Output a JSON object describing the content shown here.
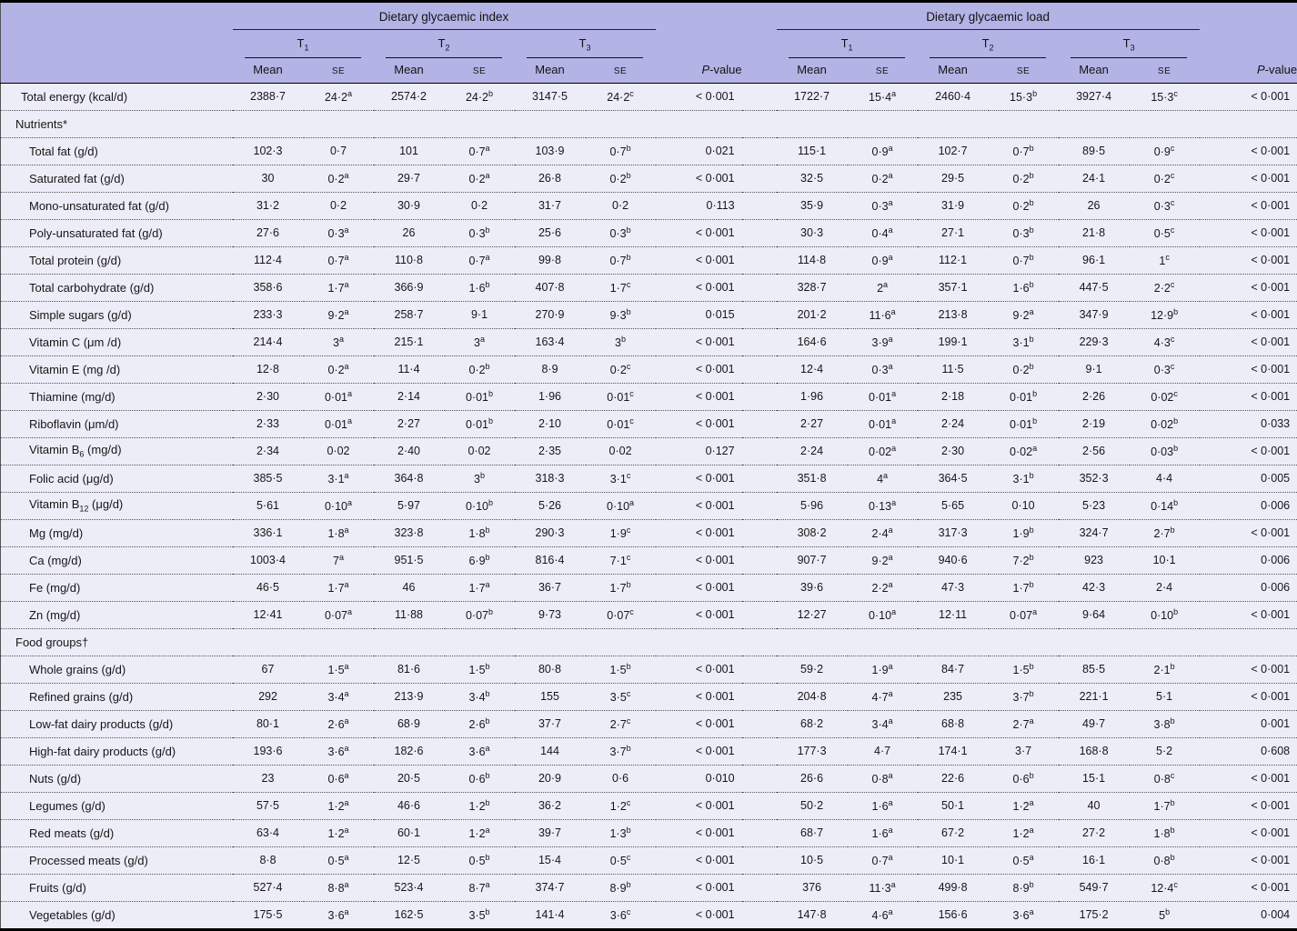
{
  "table": {
    "colors": {
      "header_bg": "#b3b3e6",
      "row_bg": "#ededf8",
      "frame_border": "#000000",
      "dotted_rule": "#555555",
      "text": "#161616"
    },
    "header": {
      "group1": "Dietary glycaemic index",
      "group2": "Dietary glycaemic load",
      "tertiles": [
        "T~1~",
        "T~2~",
        "T~3~"
      ],
      "mean_label": "Mean",
      "se_label": "SE",
      "p_label": "*P*-value"
    },
    "rows": [
      {
        "type": "data",
        "indent": false,
        "label": "Total energy (kcal/d)",
        "gi": [
          "2388·7",
          "24·2^a^",
          "2574·2",
          "24·2^b^",
          "3147·5",
          "24·2^c^",
          "< 0·001"
        ],
        "gl": [
          "1722·7",
          "15·4^a^",
          "2460·4",
          "15·3^b^",
          "3927·4",
          "15·3^c^",
          "< 0·001"
        ]
      },
      {
        "type": "section",
        "label": "Nutrients*"
      },
      {
        "type": "data",
        "indent": true,
        "label": "Total fat (g/d)",
        "gi": [
          "102·3",
          "0·7",
          "101",
          "0·7^a^",
          "103·9",
          "0·7^b^",
          "0·021"
        ],
        "gl": [
          "115·1",
          "0·9^a^",
          "102·7",
          "0·7^b^",
          "89·5",
          "0·9^c^",
          "< 0·001"
        ]
      },
      {
        "type": "data",
        "indent": true,
        "label": "Saturated fat (g/d)",
        "gi": [
          "30",
          "0·2^a^",
          "29·7",
          "0·2^a^",
          "26·8",
          "0·2^b^",
          "< 0·001"
        ],
        "gl": [
          "32·5",
          "0·2^a^",
          "29·5",
          "0·2^b^",
          "24·1",
          "0·2^c^",
          "< 0·001"
        ]
      },
      {
        "type": "data",
        "indent": true,
        "label": "Mono-unsaturated fat (g/d)",
        "gi": [
          "31·2",
          "0·2",
          "30·9",
          "0·2",
          "31·7",
          "0·2",
          "0·113"
        ],
        "gl": [
          "35·9",
          "0·3^a^",
          "31·9",
          "0·2^b^",
          "26",
          "0·3^c^",
          "< 0·001"
        ]
      },
      {
        "type": "data",
        "indent": true,
        "label": "Poly-unsaturated fat (g/d)",
        "gi": [
          "27·6",
          "0·3^a^",
          "26",
          "0·3^b^",
          "25·6",
          "0·3^b^",
          "< 0·001"
        ],
        "gl": [
          "30·3",
          "0·4^a^",
          "27·1",
          "0·3^b^",
          "21·8",
          "0·5^c^",
          "< 0·001"
        ]
      },
      {
        "type": "data",
        "indent": true,
        "label": "Total protein (g/d)",
        "gi": [
          "112·4",
          "0·7^a^",
          "110·8",
          "0·7^a^",
          "99·8",
          "0·7^b^",
          "< 0·001"
        ],
        "gl": [
          "114·8",
          "0·9^a^",
          "112·1",
          "0·7^b^",
          "96·1",
          "1^c^",
          "< 0·001"
        ]
      },
      {
        "type": "data",
        "indent": true,
        "label": "Total carbohydrate (g/d)",
        "gi": [
          "358·6",
          "1·7^a^",
          "366·9",
          "1·6^b^",
          "407·8",
          "1·7^c^",
          "< 0·001"
        ],
        "gl": [
          "328·7",
          "2^a^",
          "357·1",
          "1·6^b^",
          "447·5",
          "2·2^c^",
          "< 0·001"
        ]
      },
      {
        "type": "data",
        "indent": true,
        "label": "Simple sugars (g/d)",
        "gi": [
          "233·3",
          "9·2^a^",
          "258·7",
          "9·1",
          "270·9",
          "9·3^b^",
          "0·015"
        ],
        "gl": [
          "201·2",
          "11·6^a^",
          "213·8",
          "9·2^a^",
          "347·9",
          "12·9^b^",
          "< 0·001"
        ]
      },
      {
        "type": "data",
        "indent": true,
        "label": "Vitamin C (μm /d)",
        "gi": [
          "214·4",
          "3^a^",
          "215·1",
          "3^a^",
          "163·4",
          "3^b^",
          "< 0·001"
        ],
        "gl": [
          "164·6",
          "3·9^a^",
          "199·1",
          "3·1^b^",
          "229·3",
          "4·3^c^",
          "< 0·001"
        ]
      },
      {
        "type": "data",
        "indent": true,
        "label": "Vitamin E (mg /d)",
        "gi": [
          "12·8",
          "0·2^a^",
          "11·4",
          "0·2^b^",
          "8·9",
          "0·2^c^",
          "< 0·001"
        ],
        "gl": [
          "12·4",
          "0·3^a^",
          "11·5",
          "0·2^b^",
          "9·1",
          "0·3^c^",
          "< 0·001"
        ]
      },
      {
        "type": "data",
        "indent": true,
        "label": "Thiamine (mg/d)",
        "gi": [
          "2·30",
          "0·01^a^",
          "2·14",
          "0·01^b^",
          "1·96",
          "0·01^c^",
          "< 0·001"
        ],
        "gl": [
          "1·96",
          "0·01^a^",
          "2·18",
          "0·01^b^",
          "2·26",
          "0·02^c^",
          "< 0·001"
        ]
      },
      {
        "type": "data",
        "indent": true,
        "label": "Riboflavin (μm/d)",
        "gi": [
          "2·33",
          "0·01^a^",
          "2·27",
          "0·01^b^",
          "2·10",
          "0·01^c^",
          "< 0·001"
        ],
        "gl": [
          "2·27",
          "0·01^a^",
          "2·24",
          "0·01^b^",
          "2·19",
          "0·02^b^",
          "0·033"
        ]
      },
      {
        "type": "data",
        "indent": true,
        "label": "Vitamin B~6~ (mg/d)",
        "gi": [
          "2·34",
          "0·02",
          "2·40",
          "0·02",
          "2·35",
          "0·02",
          "0·127"
        ],
        "gl": [
          "2·24",
          "0·02^a^",
          "2·30",
          "0·02^a^",
          "2·56",
          "0·03^b^",
          "< 0·001"
        ]
      },
      {
        "type": "data",
        "indent": true,
        "label": "Folic acid (μg/d)",
        "gi": [
          "385·5",
          "3·1^a^",
          "364·8",
          "3^b^",
          "318·3",
          "3·1^c^",
          "< 0·001"
        ],
        "gl": [
          "351·8",
          "4^a^",
          "364·5",
          "3·1^b^",
          "352·3",
          "4·4",
          "0·005"
        ]
      },
      {
        "type": "data",
        "indent": true,
        "label": "Vitamin B~12~ (μg/d)",
        "gi": [
          "5·61",
          "0·10^a^",
          "5·97",
          "0·10^b^",
          "5·26",
          "0·10^a^",
          "< 0·001"
        ],
        "gl": [
          "5·96",
          "0·13^a^",
          "5·65",
          "0·10",
          "5·23",
          "0·14^b^",
          "0·006"
        ]
      },
      {
        "type": "data",
        "indent": true,
        "label": "Mg (mg/d)",
        "gi": [
          "336·1",
          "1·8^a^",
          "323·8",
          "1·8^b^",
          "290·3",
          "1·9^c^",
          "< 0·001"
        ],
        "gl": [
          "308·2",
          "2·4^a^",
          "317·3",
          "1·9^b^",
          "324·7",
          "2·7^b^",
          "< 0·001"
        ]
      },
      {
        "type": "data",
        "indent": true,
        "label": "Ca (mg/d)",
        "gi": [
          "1003·4",
          "7^a^",
          "951·5",
          "6·9^b^",
          "816·4",
          "7·1^c^",
          "< 0·001"
        ],
        "gl": [
          "907·7",
          "9·2^a^",
          "940·6",
          "7·2^b^",
          "923",
          "10·1",
          "0·006"
        ]
      },
      {
        "type": "data",
        "indent": true,
        "label": "Fe (mg/d)",
        "gi": [
          "46·5",
          "1·7^a^",
          "46",
          "1·7^a^",
          "36·7",
          "1·7^b^",
          "< 0·001"
        ],
        "gl": [
          "39·6",
          "2·2^a^",
          "47·3",
          "1·7^b^",
          "42·3",
          "2·4",
          "0·006"
        ]
      },
      {
        "type": "data",
        "indent": true,
        "label": "Zn (mg/d)",
        "gi": [
          "12·41",
          "0·07^a^",
          "11·88",
          "0·07^b^",
          "9·73",
          "0·07^c^",
          "< 0·001"
        ],
        "gl": [
          "12·27",
          "0·10^a^",
          "12·11",
          "0·07^a^",
          "9·64",
          "0·10^b^",
          "< 0·001"
        ]
      },
      {
        "type": "section",
        "label": "Food groups†"
      },
      {
        "type": "data",
        "indent": true,
        "label": "Whole grains (g/d)",
        "gi": [
          "67",
          "1·5^a^",
          "81·6",
          "1·5^b^",
          "80·8",
          "1·5^b^",
          "< 0·001"
        ],
        "gl": [
          "59·2",
          "1·9^a^",
          "84·7",
          "1·5^b^",
          "85·5",
          "2·1^b^",
          "< 0·001"
        ]
      },
      {
        "type": "data",
        "indent": true,
        "label": "Refined grains (g/d)",
        "gi": [
          "292",
          "3·4^a^",
          "213·9",
          "3·4^b^",
          "155",
          "3·5^c^",
          "< 0·001"
        ],
        "gl": [
          "204·8",
          "4·7^a^",
          "235",
          "3·7^b^",
          "221·1",
          "5·1",
          "< 0·001"
        ]
      },
      {
        "type": "data",
        "indent": true,
        "label": "Low-fat dairy products (g/d)",
        "gi": [
          "80·1",
          "2·6^a^",
          "68·9",
          "2·6^b^",
          "37·7",
          "2·7^c^",
          "< 0·001"
        ],
        "gl": [
          "68·2",
          "3·4^a^",
          "68·8",
          "2·7^a^",
          "49·7",
          "3·8^b^",
          "0·001"
        ]
      },
      {
        "type": "data",
        "indent": true,
        "label": "High-fat dairy products (g/d)",
        "gi": [
          "193·6",
          "3·6^a^",
          "182·6",
          "3·6^a^",
          "144",
          "3·7^b^",
          "< 0·001"
        ],
        "gl": [
          "177·3",
          "4·7",
          "174·1",
          "3·7",
          "168·8",
          "5·2",
          "0·608"
        ]
      },
      {
        "type": "data",
        "indent": true,
        "label": "Nuts (g/d)",
        "gi": [
          "23",
          "0·6^a^",
          "20·5",
          "0·6^b^",
          "20·9",
          "0·6",
          "0·010"
        ],
        "gl": [
          "26·6",
          "0·8^a^",
          "22·6",
          "0·6^b^",
          "15·1",
          "0·8^c^",
          "< 0·001"
        ]
      },
      {
        "type": "data",
        "indent": true,
        "label": "Legumes (g/d)",
        "gi": [
          "57·5",
          "1·2^a^",
          "46·6",
          "1·2^b^",
          "36·2",
          "1·2^c^",
          "< 0·001"
        ],
        "gl": [
          "50·2",
          "1·6^a^",
          "50·1",
          "1·2^a^",
          "40",
          "1·7^b^",
          "< 0·001"
        ]
      },
      {
        "type": "data",
        "indent": true,
        "label": "Red meats (g/d)",
        "gi": [
          "63·4",
          "1·2^a^",
          "60·1",
          "1·2^a^",
          "39·7",
          "1·3^b^",
          "< 0·001"
        ],
        "gl": [
          "68·7",
          "1·6^a^",
          "67·2",
          "1·2^a^",
          "27·2",
          "1·8^b^",
          "< 0·001"
        ]
      },
      {
        "type": "data",
        "indent": true,
        "label": "Processed meats (g/d)",
        "gi": [
          "8·8",
          "0·5^a^",
          "12·5",
          "0·5^b^",
          "15·4",
          "0·5^c^",
          "< 0·001"
        ],
        "gl": [
          "10·5",
          "0·7^a^",
          "10·1",
          "0·5^a^",
          "16·1",
          "0·8^b^",
          "< 0·001"
        ]
      },
      {
        "type": "data",
        "indent": true,
        "label": "Fruits (g/d)",
        "gi": [
          "527·4",
          "8·8^a^",
          "523·4",
          "8·7^a^",
          "374·7",
          "8·9^b^",
          "< 0·001"
        ],
        "gl": [
          "376",
          "11·3^a^",
          "499·8",
          "8·9^b^",
          "549·7",
          "12·4^c^",
          "< 0·001"
        ]
      },
      {
        "type": "data",
        "indent": true,
        "label": "Vegetables (g/d)",
        "gi": [
          "175·5",
          "3·6^a^",
          "162·5",
          "3·5^b^",
          "141·4",
          "3·6^c^",
          "< 0·001"
        ],
        "gl": [
          "147·8",
          "4·6^a^",
          "156·6",
          "3·6^a^",
          "175·2",
          "5^b^",
          "0·004"
        ]
      }
    ]
  }
}
